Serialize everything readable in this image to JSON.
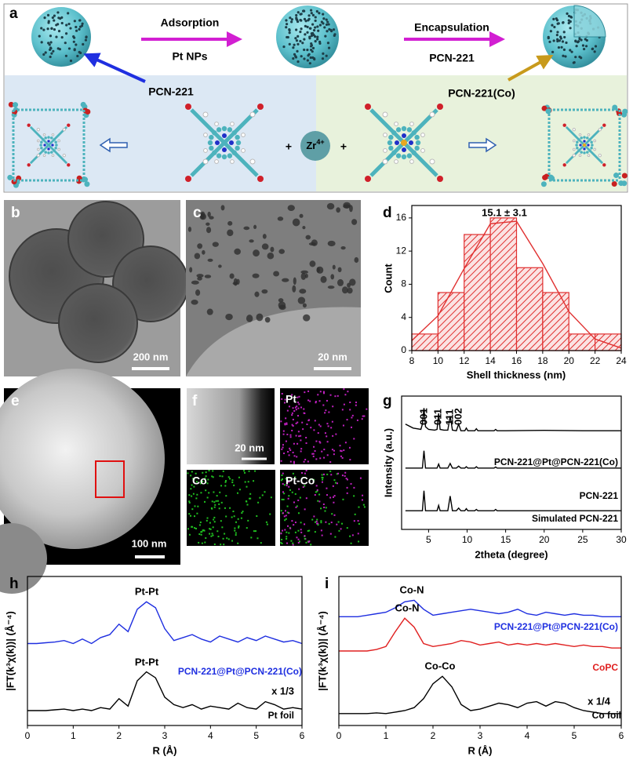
{
  "panels": {
    "a": {
      "label": "a",
      "step1": "Adsorption",
      "step1_sub": "Pt NPs",
      "step2": "Encapsulation",
      "step2_sub": "PCN-221",
      "left": "PCN-221",
      "right": "PCN-221(Co)",
      "plus": "+",
      "ion": "Zr",
      "ion_charge": "4+"
    },
    "b": {
      "label": "b",
      "scale": "200 nm"
    },
    "c": {
      "label": "c",
      "scale": "20 nm"
    },
    "e": {
      "label": "e",
      "scale": "100 nm"
    },
    "f": {
      "label": "f",
      "scale": "20 nm",
      "maps": [
        "Pt",
        "Co",
        "Pt-Co"
      ]
    }
  },
  "chart_data": [
    {
      "type": "histogram",
      "label": "d",
      "xlabel": "Shell thickness (nm)",
      "ylabel": "Count",
      "bins": [
        8,
        10,
        12,
        14,
        16,
        18,
        20,
        22,
        24
      ],
      "counts": [
        2,
        7,
        14,
        16,
        10,
        7,
        2,
        2
      ],
      "color": "#e03030",
      "series": [
        {
          "color": "#e03030",
          "x": [
            8,
            10,
            12,
            14,
            16,
            18,
            20,
            22,
            24
          ],
          "values": [
            1.2,
            4.2,
            9.9,
            15.3,
            15.6,
            10.5,
            4.7,
            1.4,
            0.3
          ]
        }
      ],
      "annotations": [
        "15.1 ± 3.1"
      ],
      "xlim": [
        8,
        24
      ],
      "ylim": [
        0,
        17.5
      ],
      "xticks": [
        8,
        10,
        12,
        14,
        16,
        18,
        20,
        22,
        24
      ],
      "yticks": [
        0,
        4,
        8,
        12,
        16
      ]
    },
    {
      "type": "line",
      "label": "g",
      "xlabel": "2theta (degree)",
      "ylabel": "Intensity (a.u.)",
      "x": [
        2,
        3,
        4,
        4.2,
        4.4,
        4.6,
        5,
        5.8,
        6.1,
        6.3,
        6.5,
        7,
        7.5,
        7.8,
        8.1,
        8.6,
        8.9,
        9.2,
        9.7,
        9.9,
        10.1,
        11,
        11.2,
        11.4,
        13.5,
        13.7,
        13.9,
        15,
        20,
        25,
        30
      ],
      "series": [
        {
          "name": "PCN-221@Pt@PCN-221(Co)",
          "color": "#000000",
          "values": [
            79,
            76,
            75,
            79,
            91,
            77,
            75,
            74.5,
            75,
            87,
            75,
            74.5,
            74.5,
            85,
            74.5,
            74,
            79,
            74,
            74,
            76,
            74,
            74,
            75.5,
            74,
            74,
            75,
            74,
            74,
            74.3,
            74,
            74
          ]
        },
        {
          "name": "PCN-221",
          "color": "#000000",
          "values": [
            46,
            46,
            46,
            46,
            59,
            46,
            46,
            46,
            46,
            49,
            46,
            46,
            46,
            49.5,
            46,
            46,
            47.5,
            46,
            46,
            47,
            46,
            46,
            47,
            46,
            46,
            46.8,
            46,
            46,
            46,
            46,
            46
          ]
        },
        {
          "name": "Simulated PCN-221",
          "color": "#000000",
          "values": [
            14,
            14,
            14,
            14,
            29,
            14,
            14,
            14,
            14,
            18,
            14,
            14,
            14,
            25,
            14,
            14,
            16,
            14,
            14,
            15.5,
            14,
            14,
            15,
            14,
            14,
            15,
            14,
            14,
            14,
            14,
            14
          ]
        }
      ],
      "annotations": [
        "001",
        "011",
        "111",
        "002"
      ],
      "xlim": [
        1.5,
        30
      ],
      "ylim": [
        0,
        100
      ],
      "xticks": [
        5,
        10,
        15,
        20,
        25,
        30
      ]
    },
    {
      "type": "line",
      "label": "h",
      "xlabel": "R (Å)",
      "ylabel": "|FT(k³χ(k))| (Å⁻⁴)",
      "x": [
        0,
        0.2,
        0.4,
        0.6,
        0.8,
        1,
        1.2,
        1.4,
        1.6,
        1.8,
        2,
        2.2,
        2.4,
        2.6,
        2.8,
        3,
        3.2,
        3.4,
        3.6,
        3.8,
        4,
        4.2,
        4.4,
        4.6,
        4.8,
        5,
        5.2,
        5.4,
        5.6,
        5.8,
        6
      ],
      "series": [
        {
          "name": "PCN-221@Pt@PCN-221(Co)",
          "color": "#1f2fe0",
          "values": [
            55,
            55,
            55.5,
            56,
            57,
            55,
            58,
            55,
            59,
            61,
            68,
            63,
            78,
            83,
            79,
            65,
            57,
            59,
            61,
            58,
            56,
            60,
            58,
            56,
            59,
            57,
            60,
            58,
            56,
            57,
            55
          ]
        },
        {
          "name": "Pt foil",
          "color": "#000000",
          "values": [
            10,
            10,
            10,
            10.5,
            11,
            10,
            11,
            10,
            12,
            11,
            18,
            13,
            30,
            36,
            32,
            19,
            14,
            12,
            14,
            11,
            13,
            12,
            11,
            15,
            12,
            11,
            16,
            14,
            11,
            12,
            11
          ]
        }
      ],
      "annotations": [
        "Pt-Pt",
        "Pt-Pt",
        "x 1/3"
      ],
      "xlim": [
        0,
        6
      ],
      "ylim": [
        0,
        100
      ],
      "xticks": [
        0,
        1,
        2,
        3,
        4,
        5,
        6
      ]
    },
    {
      "type": "line",
      "label": "i",
      "xlabel": "R (Å)",
      "ylabel": "|FT(k³χ(k))| (Å⁻⁴)",
      "x": [
        0,
        0.2,
        0.4,
        0.6,
        0.8,
        1,
        1.2,
        1.4,
        1.6,
        1.8,
        2,
        2.2,
        2.4,
        2.6,
        2.8,
        3,
        3.2,
        3.4,
        3.6,
        3.8,
        4,
        4.2,
        4.4,
        4.6,
        4.8,
        5,
        5.2,
        5.4,
        5.6,
        5.8,
        6
      ],
      "series": [
        {
          "name": "PCN-221@Pt@PCN-221(Co)",
          "color": "#1f2fe0",
          "values": [
            73,
            73,
            73,
            74,
            75,
            76,
            79,
            83,
            84,
            78,
            74,
            75,
            76,
            77,
            78,
            77,
            76,
            75,
            76,
            78,
            75,
            74,
            76,
            75,
            74,
            75,
            74,
            74,
            73,
            73,
            73
          ]
        },
        {
          "name": "CoPC",
          "color": "#e02020",
          "values": [
            50,
            50,
            50,
            50,
            51,
            53,
            63,
            72,
            66,
            55,
            53,
            54,
            55,
            57,
            56,
            54,
            55,
            56,
            54,
            55,
            54,
            55,
            54,
            55,
            54,
            53,
            54,
            53,
            53,
            52,
            52
          ]
        },
        {
          "name": "Co foil",
          "color": "#000000",
          "values": [
            8,
            8,
            8,
            8,
            8.5,
            8,
            9,
            10,
            12,
            18,
            28,
            33,
            26,
            14,
            10,
            11,
            13,
            15,
            14,
            12,
            15,
            16,
            13,
            16,
            15,
            12,
            10,
            9,
            8,
            8,
            8
          ]
        }
      ],
      "annotations": [
        "Co-N",
        "Co-N",
        "Co-Co",
        "x 1/4"
      ],
      "xlim": [
        0,
        6
      ],
      "ylim": [
        0,
        100
      ],
      "xticks": [
        0,
        1,
        2,
        3,
        4,
        5,
        6
      ]
    }
  ]
}
